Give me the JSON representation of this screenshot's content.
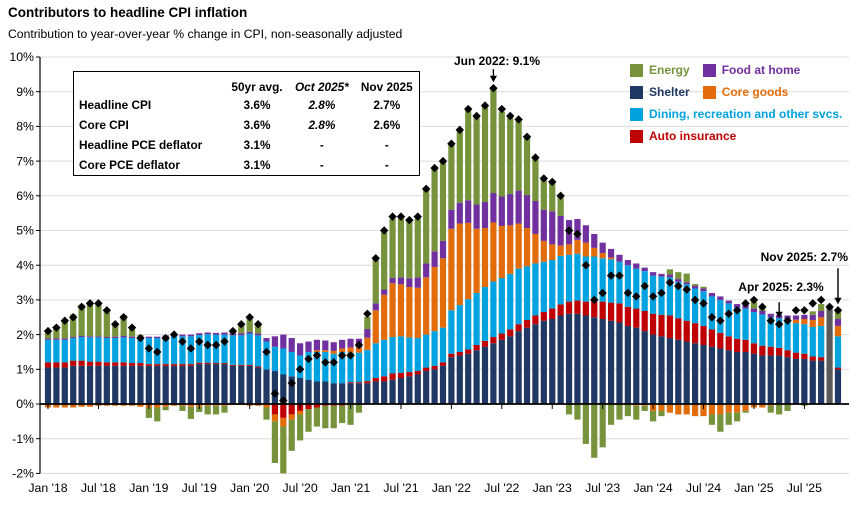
{
  "header": {
    "title": "Contributors to headline CPI inflation",
    "subtitle": "Contribution to year-over-year % change in CPI, non-seasonally adjusted"
  },
  "summary_table": {
    "col_headers": [
      "",
      "50yr avg.",
      "Oct 2025*",
      "Nov 2025"
    ],
    "rows": [
      {
        "label": "Headline CPI",
        "values": [
          "3.6%",
          "2.8%",
          "2.7%"
        ]
      },
      {
        "label": "Core CPI",
        "values": [
          "3.6%",
          "2.8%",
          "2.6%"
        ]
      },
      {
        "label": "Headline PCE deflator",
        "values": [
          "3.1%",
          "-",
          "-"
        ]
      },
      {
        "label": "Core PCE deflator",
        "values": [
          "3.1%",
          "-",
          "-"
        ]
      }
    ]
  },
  "legend": {
    "items": [
      {
        "label": "Energy",
        "color": "#76933C"
      },
      {
        "label": "Food at home",
        "color": "#7030A0"
      },
      {
        "label": "Shelter",
        "color": "#1F3864"
      },
      {
        "label": "Core goods",
        "color": "#E36C0A"
      },
      {
        "label": "Dining, recreation and other svcs.",
        "color": "#00A2E0"
      },
      {
        "label": "Auto insurance",
        "color": "#C00000"
      }
    ]
  },
  "annotations": [
    {
      "label": "Jun 2022: 9.1%",
      "month_index": 53,
      "value": 9.1
    },
    {
      "label": "Apr 2025: 2.3%",
      "month_index": 87,
      "value": 2.3
    },
    {
      "label": "Nov 2025: 2.7%",
      "month_index": 94,
      "value": 2.7
    }
  ],
  "chart_data": {
    "type": "bar",
    "subtype": "stacked-bars-with-diamond-markers",
    "start_month": "2018-01",
    "end_month": "2025-11",
    "frequency": "monthly",
    "n_months": 95,
    "grid": true,
    "y_axis": {
      "min": -2,
      "max": 10,
      "step": 1,
      "suffix": "%"
    },
    "x_tick_labels": [
      "Jan '18",
      "Jul '18",
      "Jan '19",
      "Jul '19",
      "Jan '20",
      "Jul '20",
      "Jan '21",
      "Jul '21",
      "Jan '22",
      "Jul '22",
      "Jan '23",
      "Jul '23",
      "Jan '24",
      "Jul '24",
      "Jan '25",
      "Jul '25"
    ],
    "x_tick_month_indices": [
      0,
      6,
      12,
      18,
      24,
      30,
      36,
      42,
      48,
      54,
      60,
      66,
      72,
      78,
      84,
      90
    ],
    "series": [
      {
        "name": "Shelter",
        "color": "#1F3864",
        "values": [
          1.05,
          1.05,
          1.05,
          1.1,
          1.1,
          1.1,
          1.1,
          1.1,
          1.1,
          1.1,
          1.1,
          1.1,
          1.1,
          1.1,
          1.1,
          1.1,
          1.1,
          1.1,
          1.15,
          1.15,
          1.15,
          1.15,
          1.1,
          1.1,
          1.1,
          1.05,
          1.0,
          0.95,
          0.85,
          0.8,
          0.75,
          0.7,
          0.65,
          0.65,
          0.6,
          0.6,
          0.6,
          0.6,
          0.6,
          0.65,
          0.65,
          0.7,
          0.75,
          0.8,
          0.85,
          0.95,
          1.0,
          1.1,
          1.35,
          1.4,
          1.45,
          1.55,
          1.65,
          1.75,
          1.85,
          1.95,
          2.1,
          2.2,
          2.3,
          2.4,
          2.45,
          2.55,
          2.6,
          2.6,
          2.55,
          2.5,
          2.45,
          2.4,
          2.35,
          2.25,
          2.2,
          2.1,
          2.0,
          1.95,
          1.9,
          1.85,
          1.8,
          1.75,
          1.7,
          1.65,
          1.6,
          1.55,
          1.5,
          1.5,
          1.45,
          1.4,
          1.4,
          1.4,
          1.35,
          1.3,
          1.3,
          1.25,
          1.25,
          null,
          1.0
        ]
      },
      {
        "name": "Auto insurance",
        "color": "#C00000",
        "values": [
          0.15,
          0.15,
          0.15,
          0.15,
          0.15,
          0.12,
          0.12,
          0.1,
          0.1,
          0.1,
          0.08,
          0.08,
          0.05,
          0.05,
          0.05,
          0.05,
          0.05,
          0.05,
          0.04,
          0.04,
          0.03,
          0.03,
          0.03,
          0.03,
          0.03,
          0.03,
          0.0,
          -0.3,
          -0.4,
          -0.3,
          -0.2,
          -0.15,
          -0.1,
          -0.05,
          -0.05,
          -0.05,
          0.03,
          0.03,
          0.06,
          0.1,
          0.15,
          0.18,
          0.15,
          0.12,
          0.1,
          0.1,
          0.1,
          0.1,
          0.1,
          0.1,
          0.12,
          0.15,
          0.17,
          0.18,
          0.18,
          0.2,
          0.2,
          0.22,
          0.25,
          0.25,
          0.3,
          0.32,
          0.35,
          0.38,
          0.4,
          0.45,
          0.5,
          0.52,
          0.55,
          0.55,
          0.55,
          0.58,
          0.6,
          0.62,
          0.65,
          0.62,
          0.6,
          0.58,
          0.55,
          0.5,
          0.45,
          0.4,
          0.38,
          0.35,
          0.3,
          0.28,
          0.25,
          0.22,
          0.2,
          0.18,
          0.15,
          0.12,
          0.1,
          null,
          0.05
        ]
      },
      {
        "name": "Dining, recreation and other svcs.",
        "color": "#00A2E0",
        "values": [
          0.65,
          0.65,
          0.65,
          0.65,
          0.68,
          0.7,
          0.7,
          0.7,
          0.7,
          0.72,
          0.72,
          0.72,
          0.75,
          0.75,
          0.78,
          0.8,
          0.8,
          0.8,
          0.8,
          0.82,
          0.82,
          0.82,
          0.85,
          0.85,
          0.9,
          0.9,
          0.8,
          0.7,
          0.75,
          0.7,
          0.65,
          0.8,
          0.85,
          0.85,
          0.85,
          0.9,
          0.85,
          0.85,
          0.9,
          1.0,
          1.05,
          1.05,
          1.05,
          1.0,
          0.95,
          0.95,
          1.0,
          1.0,
          1.25,
          1.35,
          1.45,
          1.5,
          1.55,
          1.6,
          1.6,
          1.6,
          1.6,
          1.55,
          1.5,
          1.45,
          1.4,
          1.4,
          1.35,
          1.35,
          1.3,
          1.3,
          1.25,
          1.25,
          1.2,
          1.2,
          1.15,
          1.15,
          1.1,
          1.1,
          1.1,
          1.05,
          1.05,
          1.0,
          1.0,
          0.95,
          0.95,
          0.95,
          0.9,
          0.9,
          0.9,
          0.9,
          0.85,
          0.85,
          0.85,
          0.85,
          0.85,
          0.85,
          0.9,
          null,
          0.9
        ]
      },
      {
        "name": "Core goods",
        "color": "#E36C0A",
        "values": [
          -0.1,
          -0.1,
          -0.1,
          -0.1,
          -0.08,
          -0.08,
          -0.05,
          -0.05,
          -0.05,
          -0.05,
          -0.05,
          -0.08,
          -0.1,
          -0.1,
          -0.08,
          -0.05,
          -0.05,
          -0.08,
          -0.08,
          -0.05,
          -0.05,
          -0.05,
          -0.03,
          -0.03,
          -0.05,
          -0.05,
          -0.1,
          -0.2,
          -0.25,
          -0.15,
          -0.1,
          0.0,
          0.05,
          0.05,
          0.08,
          0.1,
          0.15,
          0.15,
          0.35,
          0.95,
          1.3,
          1.55,
          1.5,
          1.45,
          1.45,
          1.65,
          1.85,
          2.0,
          2.35,
          2.35,
          2.2,
          1.85,
          1.7,
          1.7,
          1.5,
          1.4,
          1.3,
          1.1,
          0.85,
          0.6,
          0.45,
          0.3,
          0.3,
          0.4,
          0.4,
          0.25,
          0.15,
          0.05,
          0.0,
          0.0,
          -0.05,
          -0.05,
          -0.2,
          -0.2,
          -0.25,
          -0.3,
          -0.3,
          -0.35,
          -0.35,
          -0.3,
          -0.3,
          -0.25,
          -0.25,
          -0.2,
          -0.1,
          -0.1,
          -0.05,
          0.0,
          0.05,
          0.1,
          0.15,
          0.2,
          0.25,
          null,
          0.3
        ]
      },
      {
        "name": "Food at home",
        "color": "#7030A0",
        "values": [
          0.04,
          0.04,
          0.04,
          0.03,
          0.03,
          0.03,
          0.03,
          0.03,
          0.04,
          0.04,
          0.04,
          0.04,
          0.04,
          0.04,
          0.05,
          0.05,
          0.05,
          0.05,
          0.05,
          0.05,
          0.05,
          0.06,
          0.06,
          0.06,
          0.05,
          0.05,
          0.1,
          0.3,
          0.4,
          0.4,
          0.35,
          0.3,
          0.3,
          0.28,
          0.25,
          0.25,
          0.25,
          0.25,
          0.25,
          0.2,
          0.15,
          0.15,
          0.2,
          0.25,
          0.3,
          0.4,
          0.45,
          0.5,
          0.55,
          0.6,
          0.65,
          0.7,
          0.75,
          0.85,
          0.85,
          0.9,
          0.95,
          0.95,
          0.95,
          0.9,
          0.95,
          0.85,
          0.7,
          0.6,
          0.5,
          0.4,
          0.3,
          0.25,
          0.2,
          0.15,
          0.15,
          0.1,
          0.1,
          0.08,
          0.08,
          0.08,
          0.06,
          0.08,
          0.08,
          0.1,
          0.1,
          0.08,
          0.1,
          0.12,
          0.1,
          0.1,
          0.1,
          0.1,
          0.1,
          0.12,
          0.12,
          0.15,
          0.18,
          null,
          0.2
        ]
      },
      {
        "name": "Energy",
        "color": "#76933C",
        "values": [
          0.25,
          0.35,
          0.55,
          0.65,
          0.9,
          1.0,
          0.95,
          0.75,
          0.35,
          0.6,
          0.3,
          0.05,
          -0.3,
          -0.4,
          -0.1,
          0.0,
          -0.15,
          -0.35,
          -0.15,
          -0.25,
          -0.25,
          -0.2,
          0.05,
          0.25,
          0.45,
          0.25,
          -0.35,
          -1.2,
          -1.35,
          -0.9,
          -0.75,
          -0.65,
          -0.55,
          -0.65,
          -0.65,
          -0.5,
          -0.6,
          -0.25,
          0.35,
          1.25,
          1.65,
          1.7,
          1.7,
          1.65,
          1.7,
          2.15,
          2.4,
          2.3,
          1.9,
          2.1,
          2.6,
          2.55,
          2.75,
          3.0,
          2.45,
          2.2,
          2.05,
          1.7,
          1.25,
          0.9,
          0.85,
          0.6,
          -0.3,
          -0.45,
          -1.15,
          -1.55,
          -1.25,
          -0.6,
          -0.45,
          -0.35,
          -0.4,
          -0.15,
          -0.3,
          -0.15,
          0.15,
          0.2,
          0.25,
          0.05,
          0.05,
          -0.3,
          -0.5,
          -0.35,
          -0.25,
          -0.05,
          0.2,
          0.1,
          -0.2,
          -0.3,
          -0.2,
          0.0,
          -0.05,
          0.1,
          0.2,
          null,
          0.25
        ]
      }
    ],
    "marker_series": {
      "name": "Headline CPI year-over-year %",
      "shape": "diamond",
      "color": "#000000",
      "values": [
        2.1,
        2.2,
        2.4,
        2.5,
        2.8,
        2.9,
        2.9,
        2.7,
        2.3,
        2.5,
        2.2,
        1.9,
        1.6,
        1.5,
        1.9,
        2.0,
        1.8,
        1.6,
        1.8,
        1.7,
        1.7,
        1.8,
        2.1,
        2.3,
        2.5,
        2.3,
        1.5,
        0.3,
        0.1,
        0.6,
        1.0,
        1.3,
        1.4,
        1.2,
        1.2,
        1.4,
        1.4,
        1.7,
        2.6,
        4.2,
        5.0,
        5.4,
        5.4,
        5.3,
        5.4,
        6.2,
        6.8,
        7.0,
        7.5,
        7.9,
        8.5,
        8.3,
        8.6,
        9.1,
        8.5,
        8.3,
        8.2,
        7.7,
        7.1,
        6.5,
        6.4,
        6.0,
        5.0,
        4.9,
        4.0,
        3.0,
        3.2,
        3.7,
        3.7,
        3.2,
        3.1,
        3.4,
        3.1,
        3.2,
        3.5,
        3.4,
        3.3,
        3.0,
        2.9,
        2.5,
        2.4,
        2.6,
        2.7,
        2.9,
        3.0,
        2.8,
        2.4,
        2.3,
        2.4,
        2.7,
        2.7,
        2.9,
        3.0,
        2.8,
        2.7
      ]
    },
    "estimated_bar": {
      "month_index": 93,
      "month": "2025-10",
      "total": 2.8,
      "color": "#595959"
    },
    "colors": {
      "gridline": "#DCDCDC",
      "axis": "#000000",
      "zero_line": "#000000"
    }
  }
}
